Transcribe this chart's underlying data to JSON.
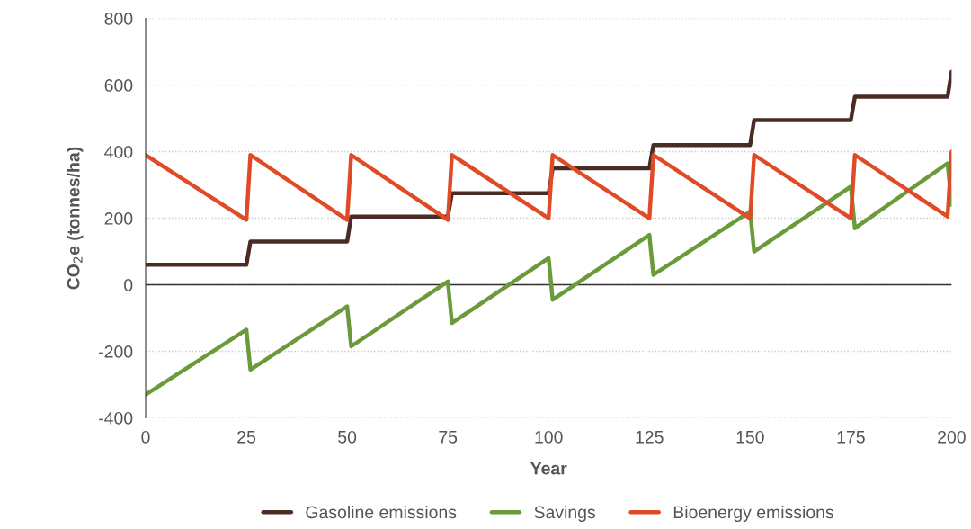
{
  "chart_data": {
    "type": "line",
    "xlabel": "Year",
    "ylabel": "CO$_{2}$e (tonnes/ha)",
    "xlim": [
      0,
      200
    ],
    "xticks": [
      0,
      25,
      50,
      75,
      100,
      125,
      150,
      175,
      200
    ],
    "ylim": [
      -400,
      800
    ],
    "yticks": [
      -400,
      -200,
      0,
      200,
      400,
      600,
      800
    ],
    "grid": "y",
    "legend": "bottom",
    "line_style": "solid",
    "marker": "none",
    "ref_lines": [
      {
        "axis": "y",
        "value": 0,
        "color": "#333333",
        "line_style": "solid"
      }
    ],
    "series": [
      {
        "name": "Gasoline emissions",
        "color": "#4a2c25",
        "x": [
          0,
          25,
          26,
          50,
          51,
          75,
          76,
          100,
          101,
          125,
          126,
          150,
          151,
          175,
          176,
          199,
          200
        ],
        "values": [
          60,
          60,
          130,
          130,
          205,
          205,
          275,
          275,
          350,
          350,
          420,
          420,
          495,
          495,
          565,
          565,
          640
        ]
      },
      {
        "name": "Savings",
        "color": "#6a9a3a",
        "x": [
          0,
          25,
          26,
          50,
          51,
          75,
          76,
          100,
          101,
          125,
          126,
          150,
          151,
          175,
          176,
          199,
          200
        ],
        "values": [
          -330,
          -135,
          -255,
          -65,
          -185,
          10,
          -115,
          80,
          -45,
          150,
          30,
          220,
          100,
          295,
          170,
          365,
          240
        ]
      },
      {
        "name": "Bioenergy emissions",
        "color": "#e04a26",
        "x": [
          0,
          25,
          26,
          50,
          51,
          75,
          76,
          100,
          101,
          125,
          126,
          150,
          151,
          175,
          176,
          199,
          200
        ],
        "values": [
          390,
          195,
          390,
          195,
          390,
          195,
          390,
          200,
          390,
          200,
          390,
          200,
          390,
          200,
          390,
          205,
          400
        ]
      }
    ]
  }
}
